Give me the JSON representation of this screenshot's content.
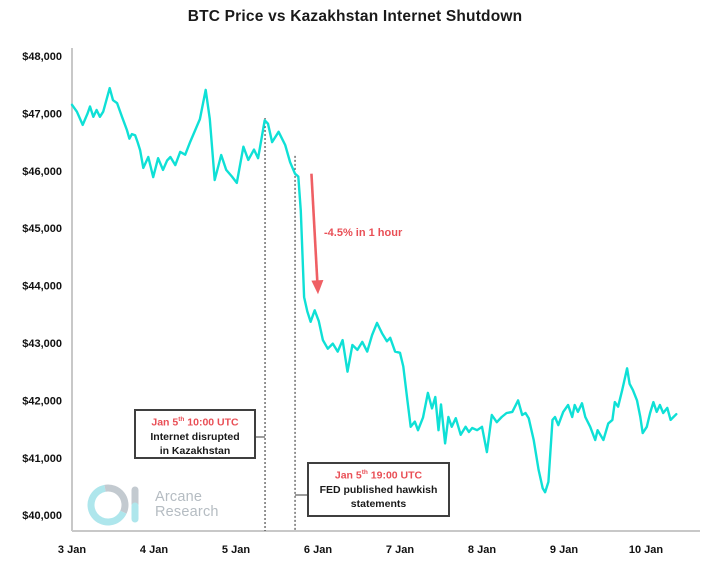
{
  "chart_data": {
    "type": "line",
    "title": "BTC Price vs Kazakhstan Internet Shutdown",
    "xlabel": "",
    "ylabel": "",
    "grid": false,
    "legend": "none",
    "ylim": [
      40000,
      48000
    ],
    "xlim_days": [
      3,
      10.45
    ],
    "x_ticks": [
      "3 Jan",
      "4 Jan",
      "5 Jan",
      "6 Jan",
      "7 Jan",
      "8 Jan",
      "9 Jan",
      "10 Jan"
    ],
    "x_tick_days": [
      3,
      4,
      5,
      6,
      7,
      8,
      9,
      10
    ],
    "y_ticks": [
      "$48,000",
      "$47,000",
      "$46,000",
      "$45,000",
      "$44,000",
      "$43,000",
      "$42,000",
      "$41,000",
      "$40,000"
    ],
    "y_tick_values": [
      48000,
      47000,
      46000,
      45000,
      44000,
      43000,
      42000,
      41000,
      40000
    ],
    "series": [
      {
        "name": "BTC price (USD)",
        "points": [
          [
            3.0,
            47150
          ],
          [
            3.06,
            47030
          ],
          [
            3.13,
            46800
          ],
          [
            3.19,
            47000
          ],
          [
            3.22,
            47120
          ],
          [
            3.26,
            46940
          ],
          [
            3.3,
            47060
          ],
          [
            3.34,
            46940
          ],
          [
            3.38,
            47030
          ],
          [
            3.46,
            47440
          ],
          [
            3.5,
            47230
          ],
          [
            3.55,
            47180
          ],
          [
            3.61,
            46940
          ],
          [
            3.67,
            46710
          ],
          [
            3.7,
            46560
          ],
          [
            3.73,
            46640
          ],
          [
            3.77,
            46620
          ],
          [
            3.8,
            46500
          ],
          [
            3.83,
            46360
          ],
          [
            3.87,
            46050
          ],
          [
            3.93,
            46240
          ],
          [
            3.99,
            45890
          ],
          [
            4.05,
            46220
          ],
          [
            4.11,
            46015
          ],
          [
            4.16,
            46180
          ],
          [
            4.2,
            46240
          ],
          [
            4.26,
            46100
          ],
          [
            4.32,
            46330
          ],
          [
            4.38,
            46280
          ],
          [
            4.44,
            46500
          ],
          [
            4.5,
            46700
          ],
          [
            4.56,
            46900
          ],
          [
            4.63,
            47410
          ],
          [
            4.68,
            46900
          ],
          [
            4.74,
            45840
          ],
          [
            4.82,
            46275
          ],
          [
            4.88,
            46015
          ],
          [
            4.95,
            45900
          ],
          [
            5.01,
            45790
          ],
          [
            5.09,
            46420
          ],
          [
            5.15,
            46190
          ],
          [
            5.22,
            46370
          ],
          [
            5.27,
            46220
          ],
          [
            5.35,
            46880
          ],
          [
            5.39,
            46820
          ],
          [
            5.44,
            46500
          ],
          [
            5.52,
            46680
          ],
          [
            5.6,
            46450
          ],
          [
            5.66,
            46150
          ],
          [
            5.72,
            45950
          ],
          [
            5.76,
            45900
          ],
          [
            5.79,
            45300
          ],
          [
            5.83,
            43800
          ],
          [
            5.87,
            43550
          ],
          [
            5.91,
            43370
          ],
          [
            5.96,
            43570
          ],
          [
            6.01,
            43380
          ],
          [
            6.06,
            43050
          ],
          [
            6.12,
            42900
          ],
          [
            6.18,
            42990
          ],
          [
            6.24,
            42850
          ],
          [
            6.3,
            43050
          ],
          [
            6.36,
            42500
          ],
          [
            6.42,
            42965
          ],
          [
            6.48,
            42880
          ],
          [
            6.54,
            43020
          ],
          [
            6.6,
            42850
          ],
          [
            6.66,
            43140
          ],
          [
            6.72,
            43350
          ],
          [
            6.78,
            43170
          ],
          [
            6.84,
            43030
          ],
          [
            6.88,
            43090
          ],
          [
            6.94,
            42850
          ],
          [
            7.0,
            42830
          ],
          [
            7.04,
            42590
          ],
          [
            7.09,
            42000
          ],
          [
            7.13,
            41540
          ],
          [
            7.18,
            41630
          ],
          [
            7.22,
            41480
          ],
          [
            7.28,
            41700
          ],
          [
            7.34,
            42130
          ],
          [
            7.39,
            41860
          ],
          [
            7.43,
            42060
          ],
          [
            7.47,
            41480
          ],
          [
            7.5,
            41930
          ],
          [
            7.55,
            41250
          ],
          [
            7.59,
            41710
          ],
          [
            7.63,
            41540
          ],
          [
            7.68,
            41690
          ],
          [
            7.74,
            41400
          ],
          [
            7.8,
            41540
          ],
          [
            7.84,
            41450
          ],
          [
            7.88,
            41520
          ],
          [
            7.94,
            41480
          ],
          [
            8.0,
            41540
          ],
          [
            8.06,
            41100
          ],
          [
            8.12,
            41745
          ],
          [
            8.18,
            41620
          ],
          [
            8.24,
            41710
          ],
          [
            8.3,
            41780
          ],
          [
            8.37,
            41800
          ],
          [
            8.44,
            42000
          ],
          [
            8.49,
            41745
          ],
          [
            8.53,
            41780
          ],
          [
            8.57,
            41690
          ],
          [
            8.63,
            41310
          ],
          [
            8.69,
            40790
          ],
          [
            8.74,
            40470
          ],
          [
            8.77,
            40400
          ],
          [
            8.81,
            40580
          ],
          [
            8.86,
            41660
          ],
          [
            8.89,
            41710
          ],
          [
            8.93,
            41570
          ],
          [
            8.99,
            41800
          ],
          [
            9.05,
            41920
          ],
          [
            9.1,
            41710
          ],
          [
            9.13,
            41920
          ],
          [
            9.17,
            41800
          ],
          [
            9.22,
            41950
          ],
          [
            9.26,
            41710
          ],
          [
            9.32,
            41540
          ],
          [
            9.38,
            41310
          ],
          [
            9.41,
            41480
          ],
          [
            9.48,
            41310
          ],
          [
            9.54,
            41600
          ],
          [
            9.59,
            41660
          ],
          [
            9.62,
            41970
          ],
          [
            9.66,
            41890
          ],
          [
            9.71,
            42180
          ],
          [
            9.77,
            42560
          ],
          [
            9.8,
            42290
          ],
          [
            9.84,
            42180
          ],
          [
            9.89,
            42000
          ],
          [
            9.93,
            41710
          ],
          [
            9.96,
            41430
          ],
          [
            10.01,
            41540
          ],
          [
            10.05,
            41780
          ],
          [
            10.09,
            41970
          ],
          [
            10.13,
            41800
          ],
          [
            10.17,
            41920
          ],
          [
            10.21,
            41780
          ],
          [
            10.26,
            41870
          ],
          [
            10.3,
            41660
          ],
          [
            10.37,
            41760
          ]
        ]
      }
    ],
    "event_lines": [
      {
        "day": 5.354,
        "top_price": 46920,
        "label": "Internet disrupted in Kazakhstan"
      },
      {
        "day": 5.72,
        "top_price": 46260,
        "label": "FED published hawkish statements"
      }
    ],
    "drop_arrow": {
      "from_day": 5.92,
      "from_price": 45950,
      "to_day": 6.0,
      "to_price": 43850
    }
  },
  "annotations": {
    "internet": {
      "date_prefix": "Jan 5",
      "date_sup": "th",
      "date_rest": " 10:00 UTC",
      "line1": "Internet disrupted",
      "line2": "in Kazakhstan"
    },
    "fed": {
      "date_prefix": "Jan 5",
      "date_sup": "th",
      "date_rest": " 19:00 UTC",
      "line1": "FED published hawkish",
      "line2": "statements"
    },
    "drop": {
      "text": "-4.5% in 1 hour"
    }
  },
  "logo": {
    "line1": "Arcane",
    "line2": "Research"
  },
  "colors": {
    "line": "#0fe0d6",
    "red": "#e94f56",
    "arrow_red": "#ef5f64",
    "axis": "#c8c8c8",
    "dashed": "#2a2a2a",
    "tick_text": "#111111",
    "connector": "#7a7a7a",
    "logo_cyan": "#aee6ec",
    "logo_gray": "#c3cad0",
    "logo_text": "#b5bcc2"
  }
}
